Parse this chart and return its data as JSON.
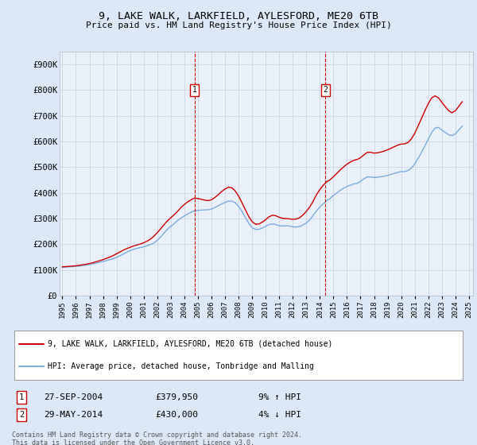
{
  "title": "9, LAKE WALK, LARKFIELD, AYLESFORD, ME20 6TB",
  "subtitle": "Price paid vs. HM Land Registry's House Price Index (HPI)",
  "ylabel_ticks": [
    "£0",
    "£100K",
    "£200K",
    "£300K",
    "£400K",
    "£500K",
    "£600K",
    "£700K",
    "£800K",
    "£900K"
  ],
  "ylim": [
    0,
    950000
  ],
  "ytick_vals": [
    0,
    100000,
    200000,
    300000,
    400000,
    500000,
    600000,
    700000,
    800000,
    900000
  ],
  "background_color": "#dce8f5",
  "plot_bg": "#eaf0f8",
  "red_line_color": "#cc0000",
  "blue_line_color": "#7aabdc",
  "legend_line1": "9, LAKE WALK, LARKFIELD, AYLESFORD, ME20 6TB (detached house)",
  "legend_line2": "HPI: Average price, detached house, Tonbridge and Malling",
  "marker1_date": "27-SEP-2004",
  "marker1_price": "£379,950",
  "marker1_hpi": "9% ↑ HPI",
  "marker2_date": "29-MAY-2014",
  "marker2_price": "£430,000",
  "marker2_hpi": "4% ↓ HPI",
  "footer": "Contains HM Land Registry data © Crown copyright and database right 2024.\nThis data is licensed under the Open Government Licence v3.0.",
  "marker1_x": 2004.75,
  "marker2_x": 2014.4,
  "xmin": 1995,
  "xmax": 2025,
  "hpi_data_x": [
    1995.0,
    1995.25,
    1995.5,
    1995.75,
    1996.0,
    1996.25,
    1996.5,
    1996.75,
    1997.0,
    1997.25,
    1997.5,
    1997.75,
    1998.0,
    1998.25,
    1998.5,
    1998.75,
    1999.0,
    1999.25,
    1999.5,
    1999.75,
    2000.0,
    2000.25,
    2000.5,
    2000.75,
    2001.0,
    2001.25,
    2001.5,
    2001.75,
    2002.0,
    2002.25,
    2002.5,
    2002.75,
    2003.0,
    2003.25,
    2003.5,
    2003.75,
    2004.0,
    2004.25,
    2004.5,
    2004.75,
    2005.0,
    2005.25,
    2005.5,
    2005.75,
    2006.0,
    2006.25,
    2006.5,
    2006.75,
    2007.0,
    2007.25,
    2007.5,
    2007.75,
    2008.0,
    2008.25,
    2008.5,
    2008.75,
    2009.0,
    2009.25,
    2009.5,
    2009.75,
    2010.0,
    2010.25,
    2010.5,
    2010.75,
    2011.0,
    2011.25,
    2011.5,
    2011.75,
    2012.0,
    2012.25,
    2012.5,
    2012.75,
    2013.0,
    2013.25,
    2013.5,
    2013.75,
    2014.0,
    2014.25,
    2014.5,
    2014.75,
    2015.0,
    2015.25,
    2015.5,
    2015.75,
    2016.0,
    2016.25,
    2016.5,
    2016.75,
    2017.0,
    2017.25,
    2017.5,
    2017.75,
    2018.0,
    2018.25,
    2018.5,
    2018.75,
    2019.0,
    2019.25,
    2019.5,
    2019.75,
    2020.0,
    2020.25,
    2020.5,
    2020.75,
    2021.0,
    2021.25,
    2021.5,
    2021.75,
    2022.0,
    2022.25,
    2022.5,
    2022.75,
    2023.0,
    2023.25,
    2023.5,
    2023.75,
    2024.0,
    2024.25,
    2024.5
  ],
  "hpi_data_y": [
    110000,
    111000,
    112000,
    113000,
    114000,
    115000,
    117000,
    119000,
    121000,
    124000,
    127000,
    130000,
    133000,
    136000,
    140000,
    144000,
    149000,
    155000,
    162000,
    169000,
    175000,
    180000,
    184000,
    187000,
    190000,
    194000,
    199000,
    205000,
    215000,
    228000,
    243000,
    258000,
    270000,
    280000,
    292000,
    302000,
    310000,
    318000,
    325000,
    330000,
    332000,
    333000,
    334000,
    334000,
    337000,
    343000,
    350000,
    357000,
    363000,
    368000,
    368000,
    362000,
    348000,
    328000,
    305000,
    282000,
    265000,
    258000,
    258000,
    263000,
    270000,
    277000,
    279000,
    277000,
    272000,
    271000,
    272000,
    271000,
    268000,
    267000,
    269000,
    275000,
    283000,
    295000,
    312000,
    330000,
    345000,
    358000,
    370000,
    378000,
    390000,
    400000,
    410000,
    418000,
    425000,
    430000,
    435000,
    437000,
    445000,
    455000,
    462000,
    462000,
    460000,
    461000,
    463000,
    465000,
    468000,
    472000,
    476000,
    480000,
    483000,
    483000,
    487000,
    496000,
    513000,
    535000,
    558000,
    583000,
    610000,
    635000,
    653000,
    655000,
    645000,
    635000,
    627000,
    623000,
    630000,
    645000,
    660000
  ],
  "price_data_x": [
    1995.0,
    1995.25,
    1995.5,
    1995.75,
    1996.0,
    1996.25,
    1996.5,
    1996.75,
    1997.0,
    1997.25,
    1997.5,
    1997.75,
    1998.0,
    1998.25,
    1998.5,
    1998.75,
    1999.0,
    1999.25,
    1999.5,
    1999.75,
    2000.0,
    2000.25,
    2000.5,
    2000.75,
    2001.0,
    2001.25,
    2001.5,
    2001.75,
    2002.0,
    2002.25,
    2002.5,
    2002.75,
    2003.0,
    2003.25,
    2003.5,
    2003.75,
    2004.0,
    2004.25,
    2004.5,
    2004.75,
    2005.0,
    2005.25,
    2005.5,
    2005.75,
    2006.0,
    2006.25,
    2006.5,
    2006.75,
    2007.0,
    2007.25,
    2007.5,
    2007.75,
    2008.0,
    2008.25,
    2008.5,
    2008.75,
    2009.0,
    2009.25,
    2009.5,
    2009.75,
    2010.0,
    2010.25,
    2010.5,
    2010.75,
    2011.0,
    2011.25,
    2011.5,
    2011.75,
    2012.0,
    2012.25,
    2012.5,
    2012.75,
    2013.0,
    2013.25,
    2013.5,
    2013.75,
    2014.0,
    2014.25,
    2014.5,
    2014.75,
    2015.0,
    2015.25,
    2015.5,
    2015.75,
    2016.0,
    2016.25,
    2016.5,
    2016.75,
    2017.0,
    2017.25,
    2017.5,
    2017.75,
    2018.0,
    2018.25,
    2018.5,
    2018.75,
    2019.0,
    2019.25,
    2019.5,
    2019.75,
    2020.0,
    2020.25,
    2020.5,
    2020.75,
    2021.0,
    2021.25,
    2021.5,
    2021.75,
    2022.0,
    2022.25,
    2022.5,
    2022.75,
    2023.0,
    2023.25,
    2023.5,
    2023.75,
    2024.0,
    2024.25,
    2024.5
  ],
  "price_data_y": [
    112000,
    113000,
    114000,
    115000,
    116000,
    118000,
    120000,
    122000,
    125000,
    128000,
    132000,
    136000,
    140000,
    145000,
    150000,
    156000,
    163000,
    170000,
    177000,
    183000,
    188000,
    193000,
    197000,
    201000,
    206000,
    212000,
    220000,
    231000,
    245000,
    260000,
    276000,
    291000,
    303000,
    315000,
    328000,
    343000,
    355000,
    365000,
    373000,
    379950,
    378000,
    375000,
    372000,
    370000,
    373000,
    382000,
    393000,
    405000,
    415000,
    422000,
    420000,
    408000,
    388000,
    362000,
    335000,
    308000,
    288000,
    278000,
    279000,
    286000,
    296000,
    307000,
    313000,
    311000,
    305000,
    301000,
    300000,
    299000,
    297000,
    298000,
    303000,
    314000,
    328000,
    345000,
    367000,
    393000,
    413000,
    430000,
    443000,
    451000,
    463000,
    476000,
    489000,
    501000,
    512000,
    520000,
    527000,
    530000,
    537000,
    548000,
    558000,
    558000,
    555000,
    556000,
    559000,
    563000,
    568000,
    574000,
    580000,
    586000,
    590000,
    591000,
    596000,
    610000,
    632000,
    661000,
    690000,
    720000,
    748000,
    770000,
    778000,
    770000,
    753000,
    736000,
    720000,
    712000,
    720000,
    737000,
    755000
  ]
}
